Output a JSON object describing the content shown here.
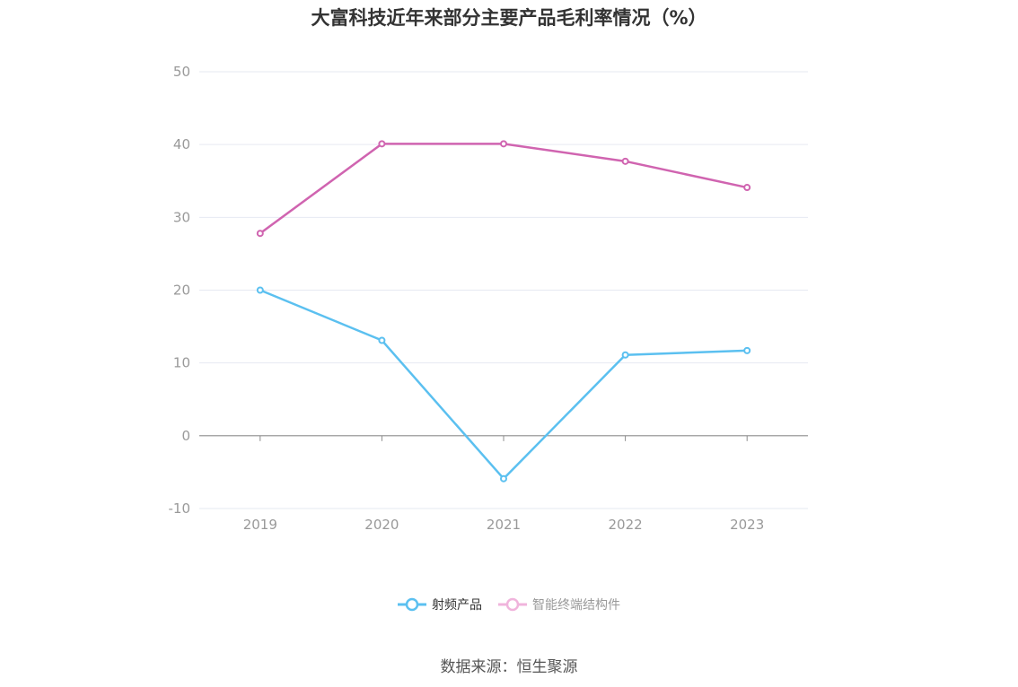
{
  "chart_data": {
    "type": "line",
    "title": "大富科技近年来部分主要产品毛利率情况（%）",
    "categories": [
      "2019",
      "2020",
      "2021",
      "2022",
      "2023"
    ],
    "series": [
      {
        "name": "射频产品",
        "values": [
          20.0,
          13.1,
          -5.9,
          11.1,
          11.7
        ],
        "color": "#5bc0f0"
      },
      {
        "name": "智能终端结构件",
        "values": [
          27.8,
          40.1,
          40.1,
          37.7,
          34.1
        ],
        "color": "#d064b0"
      }
    ],
    "ylim": [
      -10,
      50
    ],
    "yticks": [
      -10,
      0,
      10,
      20,
      30,
      40,
      50
    ],
    "grid": true,
    "legend": "bottom-center"
  },
  "legend": {
    "items": [
      {
        "label": "射频产品",
        "color": "#5bc0f0",
        "active": true
      },
      {
        "label": "智能终端结构件",
        "color": "#f0b4dc",
        "active": false
      }
    ]
  },
  "source": "数据来源：恒生聚源"
}
